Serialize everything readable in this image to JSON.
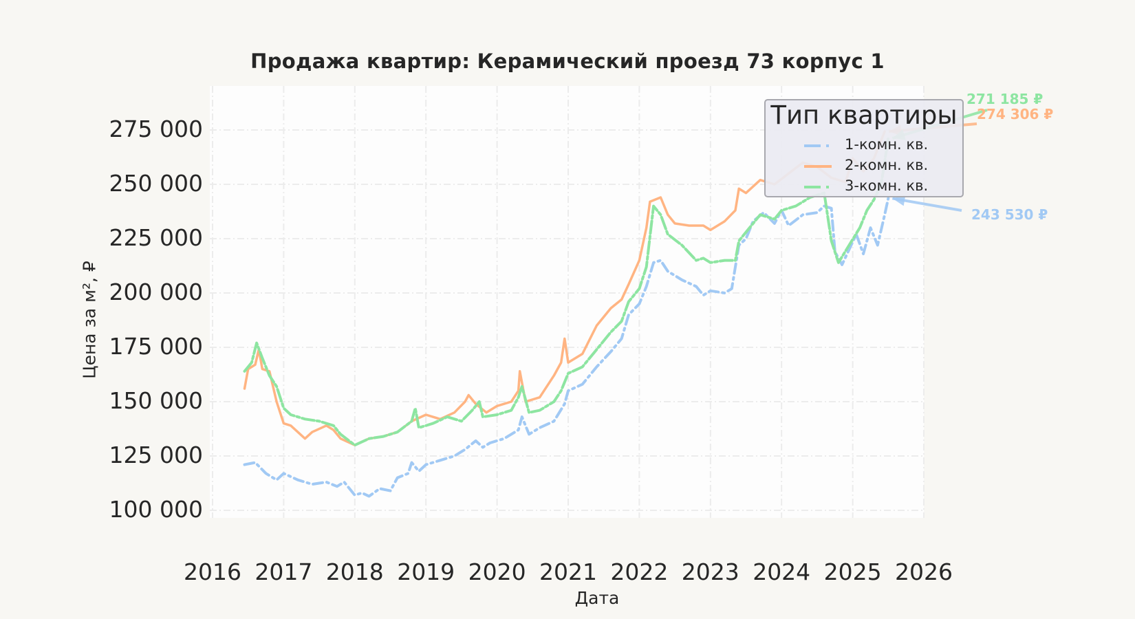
{
  "chart_data": {
    "type": "line",
    "title": "Продажа квартир: Керамический проезд 73 корпус 1",
    "xlabel": "Дата",
    "ylabel": "Цена за м², ₽",
    "xlim": [
      2016,
      2026
    ],
    "ylim": [
      98000,
      288000
    ],
    "x_ticks": [
      "2016",
      "2017",
      "2018",
      "2019",
      "2020",
      "2021",
      "2022",
      "2023",
      "2024",
      "2025",
      "2026"
    ],
    "y_ticks": [
      "100 000",
      "125 000",
      "150 000",
      "175 000",
      "200 000",
      "225 000",
      "250 000",
      "275 000"
    ],
    "grid": true,
    "legend": {
      "title": "Тип квартиры",
      "position": "upper right"
    },
    "series": [
      {
        "name": "1-комн. кв.",
        "color": "#a1c9f4",
        "style": "dashdot",
        "end_label": "243 530 ₽",
        "points": [
          [
            2016.45,
            121000
          ],
          [
            2016.6,
            122000
          ],
          [
            2016.75,
            117000
          ],
          [
            2016.9,
            114000
          ],
          [
            2017.0,
            117000
          ],
          [
            2017.2,
            114000
          ],
          [
            2017.4,
            112000
          ],
          [
            2017.6,
            113000
          ],
          [
            2017.75,
            111000
          ],
          [
            2017.85,
            113000
          ],
          [
            2018.0,
            107000
          ],
          [
            2018.1,
            108000
          ],
          [
            2018.2,
            106500
          ],
          [
            2018.35,
            110000
          ],
          [
            2018.5,
            109000
          ],
          [
            2018.6,
            115000
          ],
          [
            2018.75,
            117000
          ],
          [
            2018.8,
            122000
          ],
          [
            2018.9,
            118000
          ],
          [
            2019.0,
            121000
          ],
          [
            2019.2,
            123000
          ],
          [
            2019.4,
            125000
          ],
          [
            2019.55,
            128000
          ],
          [
            2019.7,
            132000
          ],
          [
            2019.8,
            129000
          ],
          [
            2019.9,
            131000
          ],
          [
            2020.1,
            133000
          ],
          [
            2020.3,
            137000
          ],
          [
            2020.35,
            143000
          ],
          [
            2020.45,
            135000
          ],
          [
            2020.6,
            138000
          ],
          [
            2020.8,
            141000
          ],
          [
            2020.95,
            149000
          ],
          [
            2021.0,
            155000
          ],
          [
            2021.2,
            158000
          ],
          [
            2021.4,
            166000
          ],
          [
            2021.6,
            173000
          ],
          [
            2021.75,
            179000
          ],
          [
            2021.85,
            190000
          ],
          [
            2022.0,
            195000
          ],
          [
            2022.1,
            203000
          ],
          [
            2022.2,
            214000
          ],
          [
            2022.3,
            215000
          ],
          [
            2022.4,
            210000
          ],
          [
            2022.6,
            206000
          ],
          [
            2022.8,
            203000
          ],
          [
            2022.9,
            199000
          ],
          [
            2023.0,
            201000
          ],
          [
            2023.2,
            200000
          ],
          [
            2023.3,
            202000
          ],
          [
            2023.4,
            222000
          ],
          [
            2023.5,
            225000
          ],
          [
            2023.6,
            233000
          ],
          [
            2023.75,
            237000
          ],
          [
            2023.9,
            232000
          ],
          [
            2024.0,
            238000
          ],
          [
            2024.1,
            231000
          ],
          [
            2024.3,
            236000
          ],
          [
            2024.5,
            237000
          ],
          [
            2024.6,
            240000
          ],
          [
            2024.7,
            239000
          ],
          [
            2024.75,
            219000
          ],
          [
            2024.85,
            213000
          ],
          [
            2024.95,
            220000
          ],
          [
            2025.05,
            227000
          ],
          [
            2025.15,
            218000
          ],
          [
            2025.25,
            230000
          ],
          [
            2025.35,
            222000
          ],
          [
            2025.45,
            236000
          ],
          [
            2025.5,
            243530
          ]
        ]
      },
      {
        "name": "2-комн. кв.",
        "color": "#ffb482",
        "style": "solid",
        "end_label": "274 306 ₽",
        "points": [
          [
            2016.45,
            156000
          ],
          [
            2016.5,
            165000
          ],
          [
            2016.6,
            167000
          ],
          [
            2016.65,
            174000
          ],
          [
            2016.7,
            165000
          ],
          [
            2016.8,
            164000
          ],
          [
            2016.9,
            150000
          ],
          [
            2017.0,
            140000
          ],
          [
            2017.1,
            139000
          ],
          [
            2017.3,
            133000
          ],
          [
            2017.4,
            136000
          ],
          [
            2017.6,
            139000
          ],
          [
            2017.7,
            137000
          ],
          [
            2017.8,
            133000
          ],
          [
            2018.0,
            130000
          ],
          [
            2018.2,
            133000
          ],
          [
            2018.4,
            134000
          ],
          [
            2018.6,
            136000
          ],
          [
            2018.8,
            141000
          ],
          [
            2019.0,
            144000
          ],
          [
            2019.2,
            142000
          ],
          [
            2019.4,
            145000
          ],
          [
            2019.55,
            150000
          ],
          [
            2019.6,
            153000
          ],
          [
            2019.7,
            149000
          ],
          [
            2019.85,
            145000
          ],
          [
            2020.0,
            148000
          ],
          [
            2020.2,
            150000
          ],
          [
            2020.3,
            155000
          ],
          [
            2020.32,
            164000
          ],
          [
            2020.4,
            150000
          ],
          [
            2020.6,
            152000
          ],
          [
            2020.8,
            162000
          ],
          [
            2020.9,
            168000
          ],
          [
            2020.95,
            179000
          ],
          [
            2021.0,
            168000
          ],
          [
            2021.2,
            172000
          ],
          [
            2021.4,
            185000
          ],
          [
            2021.6,
            193000
          ],
          [
            2021.75,
            197000
          ],
          [
            2021.85,
            204000
          ],
          [
            2022.0,
            215000
          ],
          [
            2022.1,
            230000
          ],
          [
            2022.15,
            242000
          ],
          [
            2022.3,
            244000
          ],
          [
            2022.4,
            236000
          ],
          [
            2022.5,
            232000
          ],
          [
            2022.7,
            231000
          ],
          [
            2022.9,
            231000
          ],
          [
            2023.0,
            229000
          ],
          [
            2023.2,
            233000
          ],
          [
            2023.35,
            238000
          ],
          [
            2023.4,
            248000
          ],
          [
            2023.5,
            246000
          ],
          [
            2023.7,
            252000
          ],
          [
            2023.9,
            250000
          ],
          [
            2024.1,
            255000
          ],
          [
            2024.3,
            260000
          ],
          [
            2024.5,
            258000
          ],
          [
            2024.7,
            253000
          ],
          [
            2024.9,
            251000
          ],
          [
            2025.0,
            262000
          ],
          [
            2025.15,
            256000
          ],
          [
            2025.3,
            262000
          ],
          [
            2025.45,
            274306
          ]
        ]
      },
      {
        "name": "3-комн. кв.",
        "color": "#8de5a1",
        "style": "dashdot-dense",
        "end_label": "271 185 ₽",
        "points": [
          [
            2016.45,
            164000
          ],
          [
            2016.55,
            168000
          ],
          [
            2016.62,
            177000
          ],
          [
            2016.7,
            170000
          ],
          [
            2016.8,
            162000
          ],
          [
            2016.9,
            157000
          ],
          [
            2017.0,
            147000
          ],
          [
            2017.1,
            144000
          ],
          [
            2017.3,
            142000
          ],
          [
            2017.5,
            141000
          ],
          [
            2017.7,
            139000
          ],
          [
            2017.8,
            135000
          ],
          [
            2018.0,
            130000
          ],
          [
            2018.2,
            133000
          ],
          [
            2018.4,
            134000
          ],
          [
            2018.6,
            136000
          ],
          [
            2018.8,
            141000
          ],
          [
            2018.85,
            147000
          ],
          [
            2018.9,
            138000
          ],
          [
            2019.1,
            140000
          ],
          [
            2019.3,
            143000
          ],
          [
            2019.5,
            141000
          ],
          [
            2019.65,
            146000
          ],
          [
            2019.75,
            150000
          ],
          [
            2019.8,
            143000
          ],
          [
            2020.0,
            144000
          ],
          [
            2020.2,
            146000
          ],
          [
            2020.3,
            152000
          ],
          [
            2020.35,
            157000
          ],
          [
            2020.45,
            145000
          ],
          [
            2020.6,
            146000
          ],
          [
            2020.8,
            150000
          ],
          [
            2020.9,
            155000
          ],
          [
            2021.0,
            163000
          ],
          [
            2021.2,
            166000
          ],
          [
            2021.4,
            174000
          ],
          [
            2021.6,
            182000
          ],
          [
            2021.75,
            187000
          ],
          [
            2021.85,
            196000
          ],
          [
            2022.0,
            202000
          ],
          [
            2022.1,
            212000
          ],
          [
            2022.2,
            240000
          ],
          [
            2022.3,
            236000
          ],
          [
            2022.4,
            227000
          ],
          [
            2022.6,
            222000
          ],
          [
            2022.8,
            215000
          ],
          [
            2022.9,
            216000
          ],
          [
            2023.0,
            214000
          ],
          [
            2023.2,
            215000
          ],
          [
            2023.35,
            215000
          ],
          [
            2023.4,
            224000
          ],
          [
            2023.5,
            228000
          ],
          [
            2023.7,
            236000
          ],
          [
            2023.9,
            234000
          ],
          [
            2024.0,
            238000
          ],
          [
            2024.2,
            240000
          ],
          [
            2024.4,
            244000
          ],
          [
            2024.6,
            246000
          ],
          [
            2024.7,
            224000
          ],
          [
            2024.8,
            214000
          ],
          [
            2024.95,
            222000
          ],
          [
            2025.1,
            230000
          ],
          [
            2025.2,
            238000
          ],
          [
            2025.3,
            243000
          ],
          [
            2025.4,
            250000
          ],
          [
            2025.5,
            271185
          ]
        ]
      }
    ]
  }
}
